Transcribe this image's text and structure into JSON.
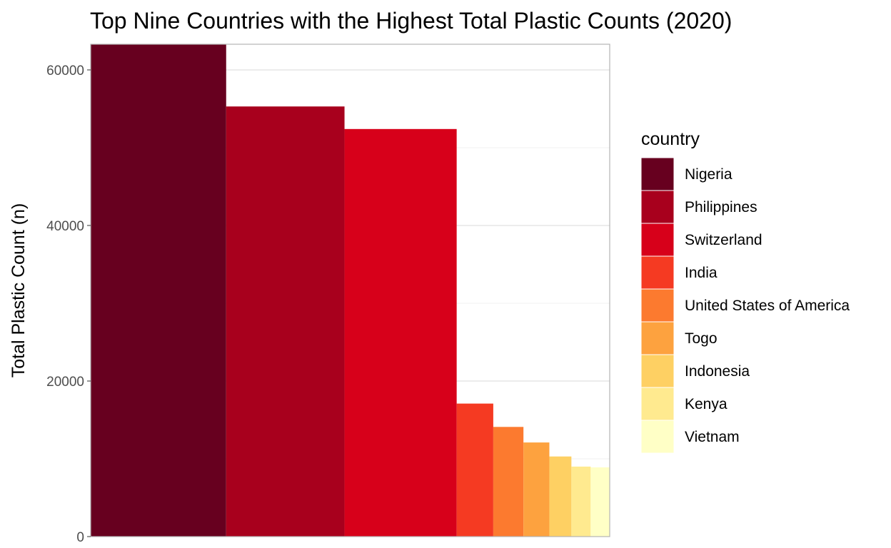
{
  "chart_data": {
    "type": "bar",
    "title": "Top Nine Countries with the Highest Total Plastic Counts (2020)",
    "xlabel": "",
    "ylabel": "Total Plastic Count (n)",
    "ylim": [
      0,
      63300
    ],
    "yticks": [
      0,
      20000,
      40000,
      60000
    ],
    "ytick_labels": [
      "0",
      "20000",
      "40000",
      "60000"
    ],
    "grid": true,
    "bar_widths_proportional": true,
    "legend": {
      "title": "country",
      "position": "right"
    },
    "categories": [
      "Nigeria",
      "Philippines",
      "Switzerland",
      "India",
      "United States of America",
      "Togo",
      "Indonesia",
      "Kenya",
      "Vietnam"
    ],
    "values": [
      63300,
      55300,
      52400,
      17100,
      14100,
      12100,
      10300,
      9000,
      8900
    ],
    "colors": [
      "#67001F",
      "#A8001D",
      "#D7001A",
      "#F53A22",
      "#FC7A2F",
      "#FDA23F",
      "#FED063",
      "#FFEA8F",
      "#FFFFC6"
    ]
  }
}
